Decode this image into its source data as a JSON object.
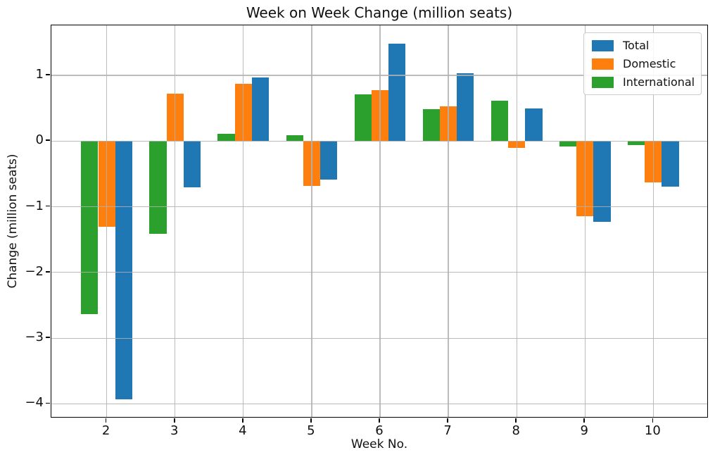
{
  "chart_data": {
    "type": "bar",
    "title": "Week on Week Change (million seats)",
    "xlabel": "Week No.",
    "ylabel": "Change (million seats)",
    "categories": [
      2,
      3,
      4,
      5,
      6,
      7,
      8,
      9,
      10
    ],
    "series": [
      {
        "name": "Total",
        "color": "#1f77b4",
        "values": [
          -3.93,
          -0.7,
          0.97,
          -0.59,
          1.48,
          1.03,
          0.5,
          -1.23,
          -0.69
        ]
      },
      {
        "name": "Domestic",
        "color": "#ff7f0e",
        "values": [
          -1.3,
          0.72,
          0.87,
          -0.68,
          0.77,
          0.53,
          -0.1,
          -1.14,
          -0.63
        ]
      },
      {
        "name": "International",
        "color": "#2ca02c",
        "values": [
          -2.63,
          -1.41,
          0.11,
          0.09,
          0.71,
          0.49,
          0.61,
          -0.08,
          -0.06
        ]
      }
    ],
    "group_offsets": {
      "International": -0.25,
      "Domestic": 0,
      "Total": 0.25
    },
    "bar_width": 0.25,
    "xlim": [
      1.19,
      10.81
    ],
    "ylim": [
      -4.22,
      1.76
    ],
    "xticks": [
      2,
      3,
      4,
      5,
      6,
      7,
      8,
      9,
      10
    ],
    "yticks": [
      1,
      0,
      -1,
      -2,
      -3,
      -4
    ],
    "grid": true,
    "grid_color": "#b0b0b0",
    "legend": {
      "position": "upper right",
      "entries": [
        "Total",
        "Domestic",
        "International"
      ]
    }
  }
}
